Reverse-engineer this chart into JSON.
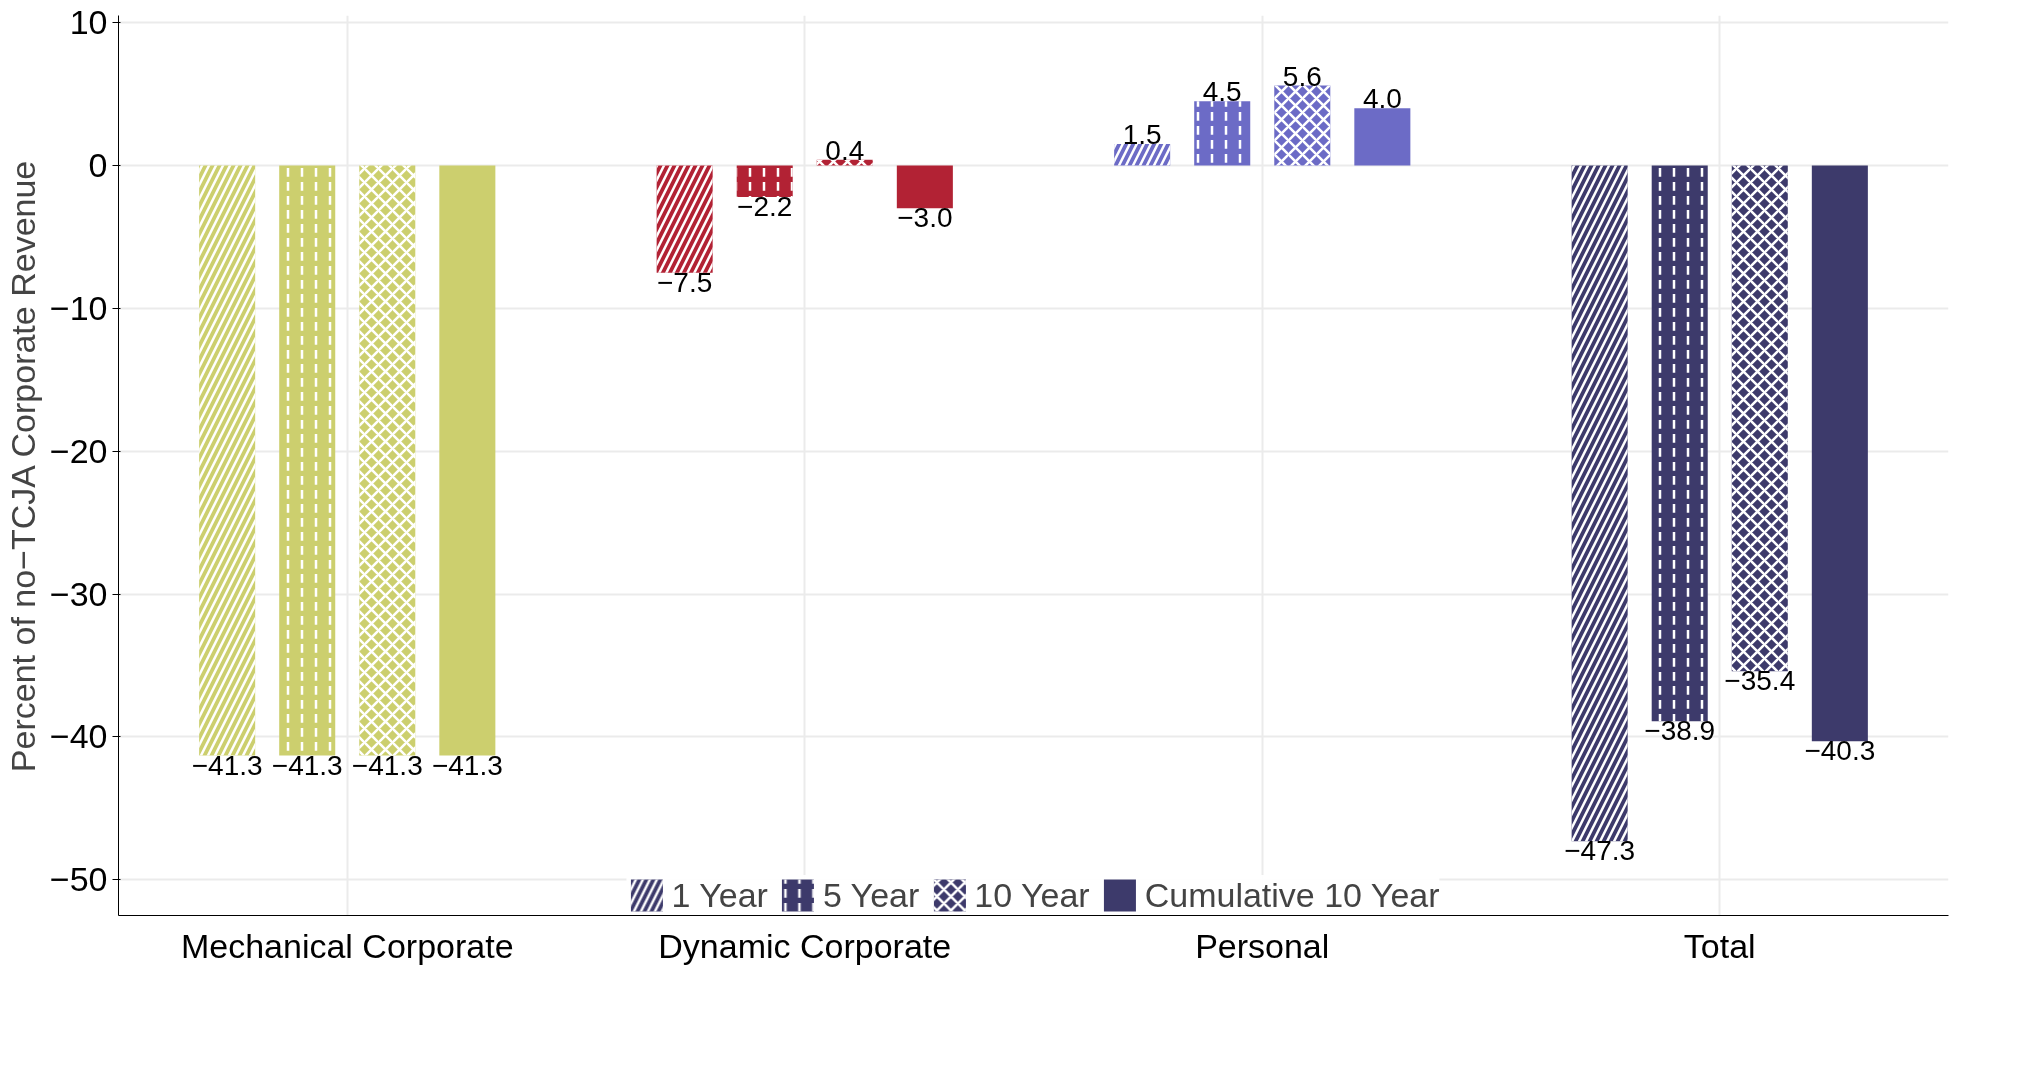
{
  "chart_data": {
    "type": "bar",
    "ylabel": "Percent of no−TCJA Corporate Revenue",
    "categories": [
      "Mechanical Corporate",
      "Dynamic Corporate",
      "Personal",
      "Total"
    ],
    "series": [
      {
        "name": "1 Year",
        "colors": [
          "#cccf6e",
          "#b22234",
          "#6c6bc6",
          "#3d3a6b"
        ],
        "values": [
          -41.3,
          -7.5,
          1.5,
          -47.3
        ]
      },
      {
        "name": "5 Year",
        "colors": [
          "#cccf6e",
          "#b22234",
          "#6c6bc6",
          "#3d3a6b"
        ],
        "values": [
          -41.3,
          -2.2,
          4.5,
          -38.9
        ]
      },
      {
        "name": "10 Year",
        "colors": [
          "#cccf6e",
          "#b22234",
          "#6c6bc6",
          "#3d3a6b"
        ],
        "values": [
          -41.3,
          0.4,
          5.6,
          -35.4
        ]
      },
      {
        "name": "Cumulative 10 Year",
        "colors": [
          "#cccf6e",
          "#b22234",
          "#6c6bc6",
          "#3d3a6b"
        ],
        "values": [
          -41.3,
          -3.0,
          4.0,
          -40.3
        ],
        "value_labels": [
          "−41.3",
          "−3.0",
          "4.0",
          "−40.3"
        ]
      }
    ],
    "ylim": [
      -52.5,
      10.5
    ],
    "yticks": [
      -50,
      -40,
      -30,
      -20,
      -10,
      0,
      10
    ],
    "grid": true,
    "data_labels": true,
    "legend": "bottom"
  }
}
